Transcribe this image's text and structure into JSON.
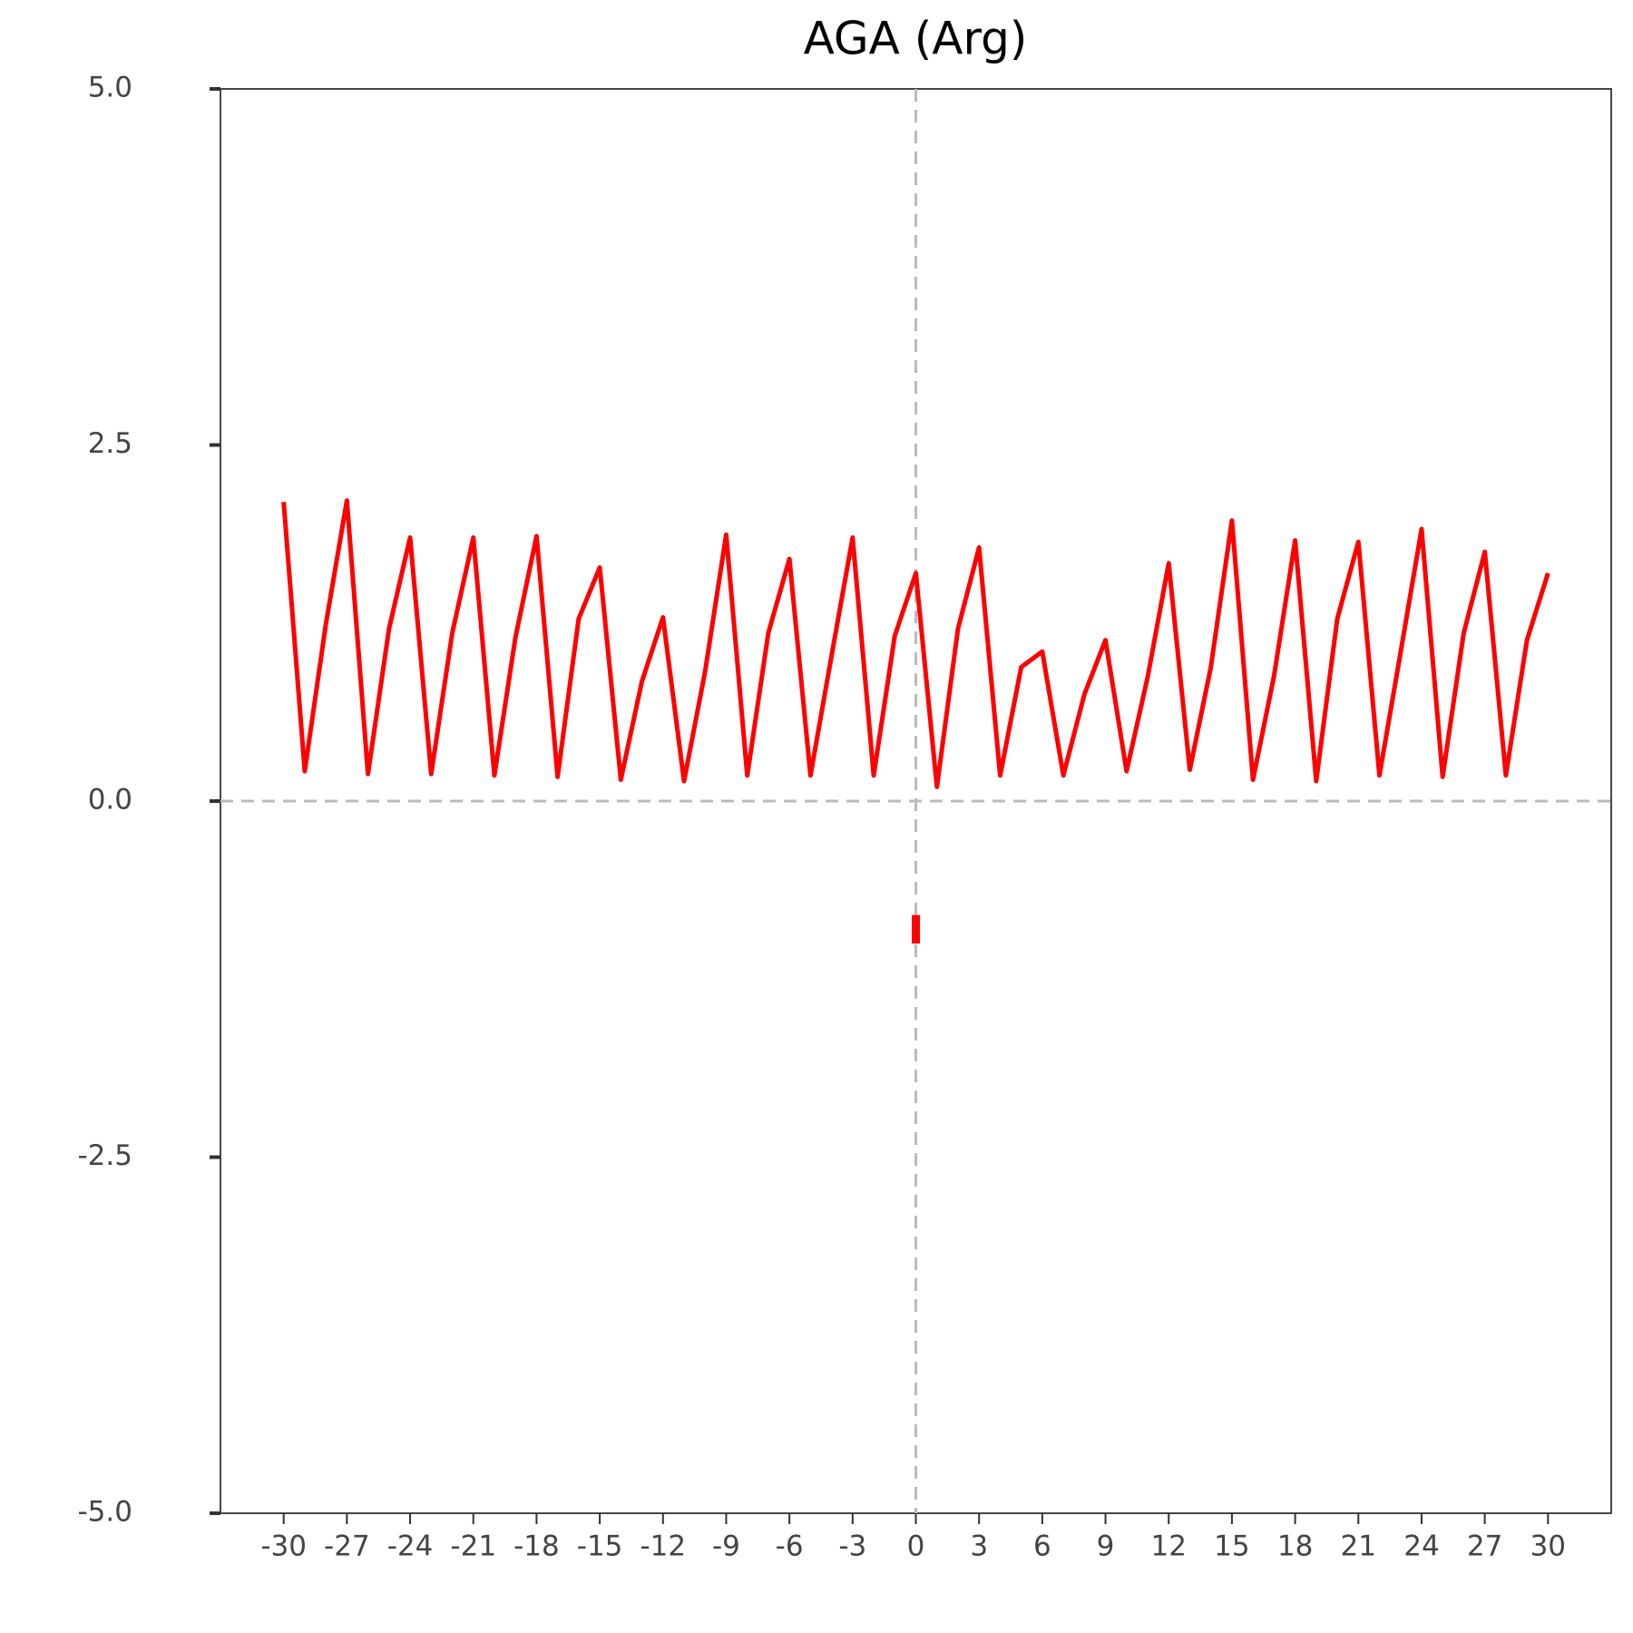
{
  "chart_data": {
    "type": "line",
    "title": "AGA (Arg)",
    "x": [
      -30,
      -29,
      -28,
      -27,
      -26,
      -25,
      -24,
      -23,
      -22,
      -21,
      -20,
      -19,
      -18,
      -17,
      -16,
      -15,
      -14,
      -13,
      -12,
      -11,
      -10,
      -9,
      -8,
      -7,
      -6,
      -5,
      -4,
      -3,
      -2,
      -1,
      0,
      1,
      2,
      3,
      4,
      5,
      6,
      7,
      8,
      9,
      10,
      11,
      12,
      13,
      14,
      15,
      16,
      17,
      18,
      19,
      20,
      21,
      22,
      23,
      24,
      25,
      26,
      27,
      28,
      29,
      30
    ],
    "series": [
      {
        "color": "#ff0000",
        "values": [
          2.1,
          0.21,
          1.24,
          2.11,
          0.19,
          1.21,
          1.85,
          0.19,
          1.18,
          1.85,
          0.18,
          1.15,
          1.86,
          0.17,
          1.28,
          1.64,
          0.15,
          0.84,
          1.29,
          0.14,
          0.91,
          1.87,
          0.18,
          1.18,
          1.7,
          0.18,
          1.02,
          1.85,
          0.18,
          1.16,
          1.6,
          0.1,
          1.21,
          1.78,
          0.18,
          0.94,
          1.05,
          0.18,
          0.75,
          1.13,
          0.21,
          0.87,
          1.67,
          0.22,
          0.94,
          1.97,
          0.15,
          0.88,
          1.83,
          0.14,
          1.28,
          1.82,
          0.18,
          1.04,
          1.91,
          0.17,
          1.18,
          1.75,
          0.18,
          1.13,
          1.6
        ]
      },
      {
        "color": "#ff0000",
        "x": [
          0,
          0
        ],
        "values": [
          -0.8,
          -1.0
        ]
      }
    ],
    "xlim": [
      -33,
      33
    ],
    "ylim": [
      -5,
      5
    ],
    "xticks": [
      -30,
      -27,
      -24,
      -21,
      -18,
      -15,
      -12,
      -9,
      -6,
      -3,
      0,
      3,
      6,
      9,
      12,
      15,
      18,
      21,
      24,
      27,
      30
    ],
    "yticks": [
      {
        "value": -5,
        "label": "-5.0"
      },
      {
        "value": -2.5,
        "label": "-2.5"
      },
      {
        "value": 0,
        "label": "0.0"
      },
      {
        "value": 2.5,
        "label": "2.5"
      },
      {
        "value": 5,
        "label": "5.0"
      }
    ],
    "hlines": [
      0
    ],
    "vlines": [
      0
    ]
  }
}
